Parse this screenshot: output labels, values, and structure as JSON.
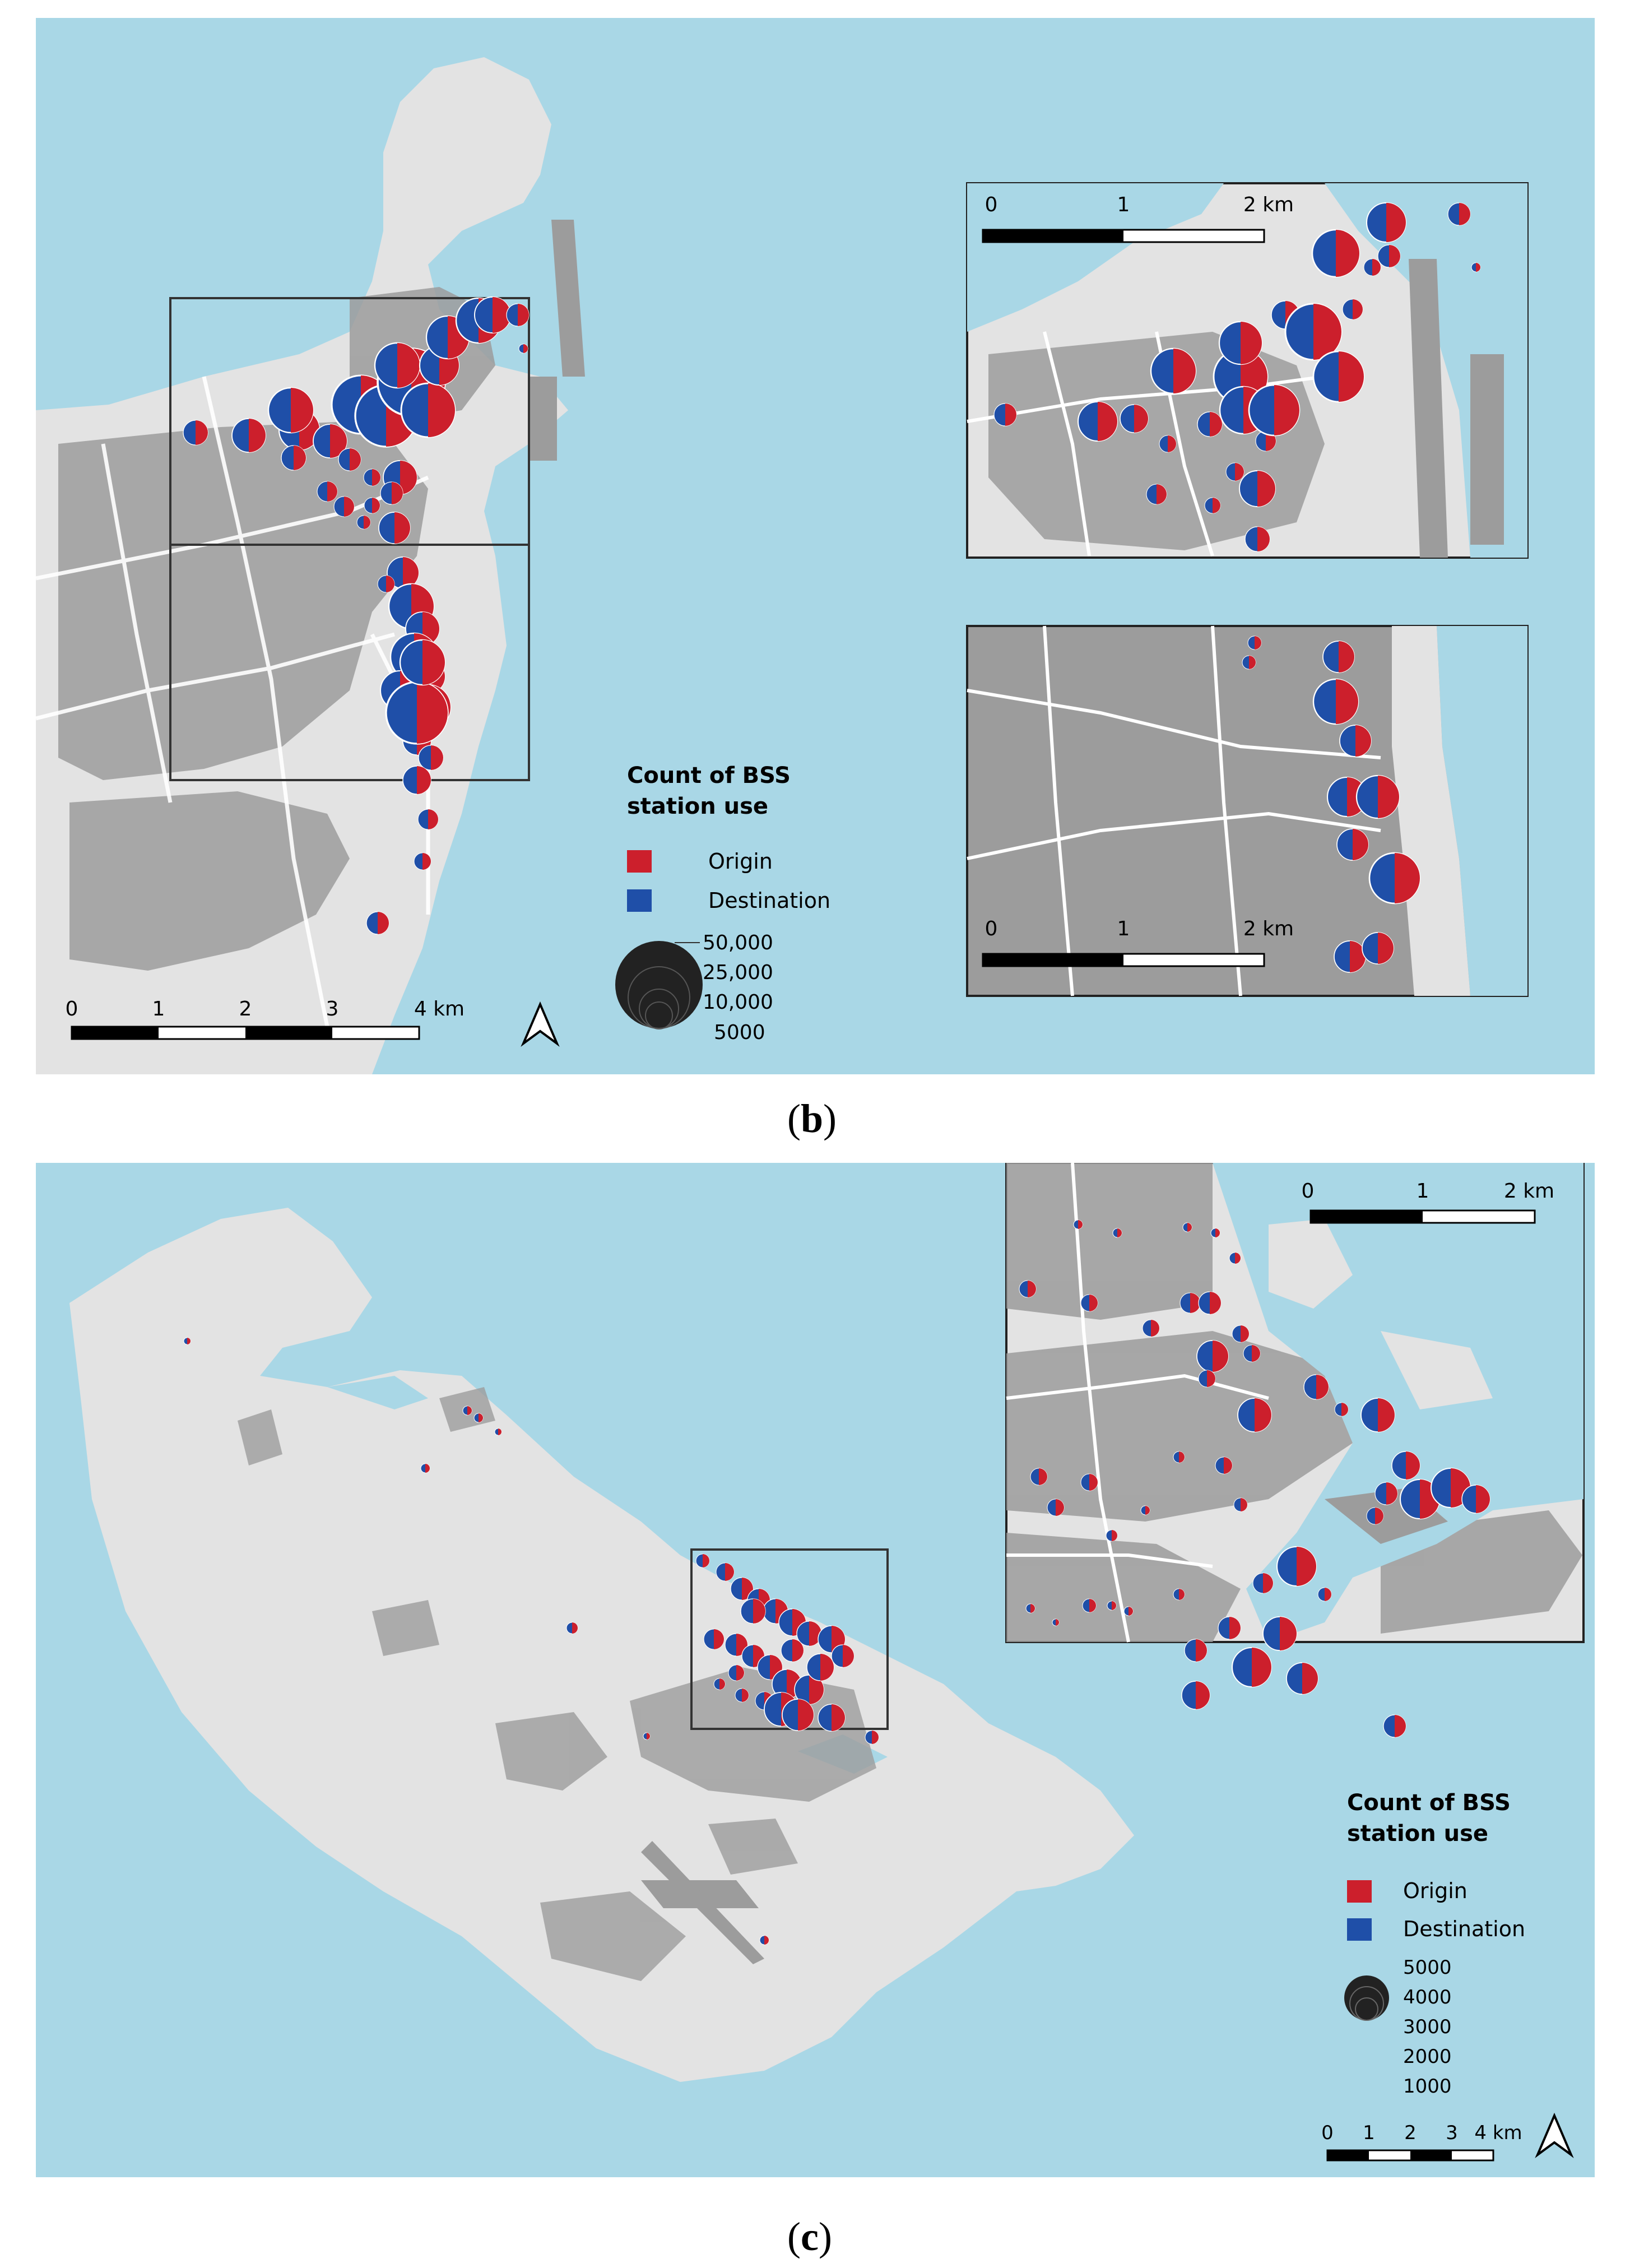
{
  "panel_b": {
    "caption_open": "(",
    "caption_letter": "b",
    "caption_close": ")",
    "legend": {
      "title_line1": "Count of BSS",
      "title_line2": "station use",
      "origin_label": "Origin",
      "destination_label": "Destination",
      "size_labels": [
        "50,000",
        "25,000",
        "10,000",
        "5000"
      ]
    },
    "main_scale": {
      "ticks": [
        "0",
        "1",
        "2",
        "3",
        "4 km"
      ]
    },
    "inset_top_scale": {
      "ticks": [
        "0",
        "1",
        "2 km"
      ]
    },
    "inset_bottom_scale": {
      "ticks": [
        "0",
        "1",
        "2 km"
      ]
    }
  },
  "panel_c": {
    "caption_open": "(",
    "caption_letter": "c",
    "caption_close": ")",
    "legend": {
      "title_line1": "Count of BSS",
      "title_line2": "station use",
      "origin_label": "Origin",
      "destination_label": "Destination",
      "size_labels": [
        "5000",
        "4000",
        "3000",
        "2000",
        "1000"
      ]
    },
    "main_scale": {
      "ticks": [
        "0",
        "1",
        "2",
        "3",
        "4 km"
      ]
    },
    "inset_scale": {
      "ticks": [
        "0",
        "1",
        "2 km"
      ]
    }
  },
  "colors": {
    "sea": "#a9d7e6",
    "land": "#e3e3e3",
    "built": "#9c9c9c",
    "origin": "#cc1f2c",
    "destination": "#1f4fa8"
  },
  "icons": [
    "north-arrow-icon"
  ]
}
